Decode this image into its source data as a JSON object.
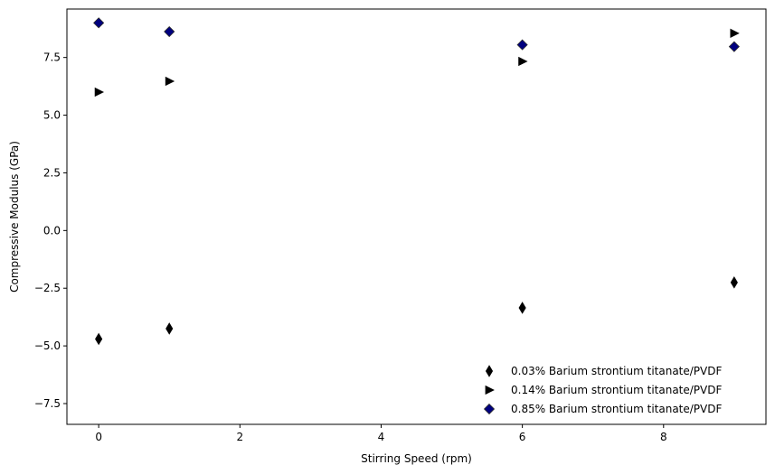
{
  "chart_data": {
    "type": "scatter",
    "title": "",
    "xlabel": "Stirring Speed (rpm)",
    "ylabel": "Compressive Modulus (GPa)",
    "xlim": [
      -0.45,
      9.45
    ],
    "ylim": [
      -8.4,
      9.6
    ],
    "xticks": [
      0,
      2,
      4,
      6,
      8
    ],
    "xtick_labels": [
      "0",
      "2",
      "4",
      "6",
      "8"
    ],
    "yticks": [
      -7.5,
      -5.0,
      -2.5,
      0.0,
      2.5,
      5.0,
      7.5
    ],
    "ytick_labels": [
      "−7.5",
      "−5.0",
      "−2.5",
      "0.0",
      "2.5",
      "5.0",
      "7.5"
    ],
    "grid": false,
    "legend_position": "lower-right",
    "series": [
      {
        "name": "0.03% Barium strontium titanate/PVDF",
        "marker": "thin-diamond",
        "color": "#000000",
        "x": [
          0,
          1,
          6,
          9
        ],
        "y": [
          -4.7,
          -4.25,
          -3.35,
          -2.25
        ]
      },
      {
        "name": "0.14% Barium strontium titanate/PVDF",
        "marker": "triangle-right",
        "color": "#000000",
        "x": [
          0,
          1,
          6,
          9
        ],
        "y": [
          6.0,
          6.47,
          7.33,
          8.55
        ]
      },
      {
        "name": "0.85% Barium strontium titanate/PVDF",
        "marker": "diamond",
        "color": "#00007f",
        "x": [
          0,
          1,
          6,
          9
        ],
        "y": [
          9.0,
          8.62,
          8.05,
          7.97
        ]
      }
    ]
  }
}
